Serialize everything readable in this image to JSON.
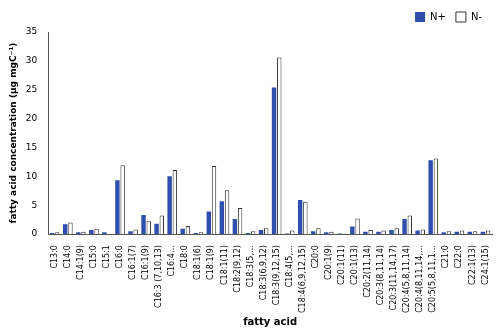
{
  "chart_data": {
    "type": "bar",
    "x_label": "fatty acid",
    "y_label": "fatty acid concentration (µg mgC⁻¹)",
    "categories": [
      "C13:0",
      "C14:0",
      "C14:1(9)",
      "C15:0",
      "C15:1",
      "C16:0",
      "C16:1(7)",
      "C16:1(9)",
      "C16:3 (7,10,13)",
      "C16:4…",
      "C18:0",
      "C18:1(6)",
      "C18:1(9)",
      "C18:1(11)",
      "C18:2(9,12)",
      "C18:3(5,…",
      "C18:3(6,9,12)",
      "C18:3(9,12,15)",
      "C18:4(5,…",
      "C18:4(6,9,12,15)",
      "C20:0",
      "C20:1(9)",
      "C20:1(11)",
      "C20:1(13)",
      "C20:2(11,14)",
      "C20:3(8,11,14)",
      "C20:3(11,14,17)",
      "C20:4(5,8,11,14)",
      "C20:4(8,11,14,…",
      "C20:5(5,8,11,1…",
      "C21:0",
      "C22:0",
      "C22:1(13)",
      "C24:1(15)"
    ],
    "series": [
      {
        "name": "N+",
        "color": "#2f4fae",
        "values": [
          0.2,
          1.7,
          0.3,
          0.7,
          0.3,
          9.3,
          0.5,
          3.3,
          1.8,
          10.0,
          0.9,
          0.2,
          3.9,
          5.7,
          2.6,
          0.2,
          0.7,
          25.4,
          0.1,
          5.9,
          0.5,
          0.3,
          0.1,
          1.3,
          0.4,
          0.4,
          0.7,
          2.6,
          0.6,
          12.8,
          0.3,
          0.4,
          0.4,
          0.4
        ]
      },
      {
        "name": "N-",
        "color": "#ffffff",
        "values": [
          0.3,
          2.0,
          0.4,
          0.9,
          0.0,
          11.9,
          0.8,
          2.2,
          3.2,
          11.1,
          1.4,
          0.3,
          11.8,
          7.6,
          4.5,
          0.5,
          1.0,
          30.6,
          0.6,
          5.6,
          1.0,
          0.4,
          0.1,
          2.7,
          0.7,
          0.6,
          1.0,
          3.2,
          0.8,
          13.1,
          0.5,
          0.6,
          0.5,
          0.6
        ]
      }
    ],
    "ylim": [
      0,
      35
    ],
    "yticks": [
      0,
      5,
      10,
      15,
      20,
      25,
      30,
      35
    ],
    "grid": false,
    "legend": "upper-right"
  }
}
